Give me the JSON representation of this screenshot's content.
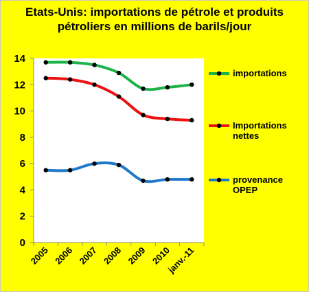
{
  "chart_data": {
    "type": "line",
    "title": "Etats-Unis: importations de pétrole et produits pétroliers en millions de barils/jour",
    "title_lines": [
      "Etats-Unis: importations de pétrole et produits",
      "pétroliers en millions de barils/jour"
    ],
    "categories": [
      "2005",
      "2006",
      "2007",
      "2008",
      "2009",
      "2010",
      "janv.-11"
    ],
    "ylim": [
      0,
      14
    ],
    "yticks": [
      0,
      2,
      4,
      6,
      8,
      10,
      12,
      14
    ],
    "grid": false,
    "legend_position": "right",
    "series": [
      {
        "name": "importations",
        "color": "#1db24a",
        "values": [
          13.7,
          13.7,
          13.5,
          12.9,
          11.7,
          11.8,
          12.0
        ]
      },
      {
        "name": "Importations nettes",
        "name_lines": [
          "Importations",
          "nettes"
        ],
        "color": "#ee1111",
        "values": [
          12.5,
          12.4,
          12.0,
          11.1,
          9.7,
          9.4,
          9.3
        ]
      },
      {
        "name": "provenance OPEP",
        "name_lines": [
          "provenance",
          "OPEP"
        ],
        "color": "#1f78c8",
        "values": [
          5.5,
          5.5,
          6.0,
          5.9,
          4.7,
          4.8,
          4.8
        ]
      }
    ],
    "plot_background": "#ffffff",
    "page_background": "#ffff00"
  }
}
